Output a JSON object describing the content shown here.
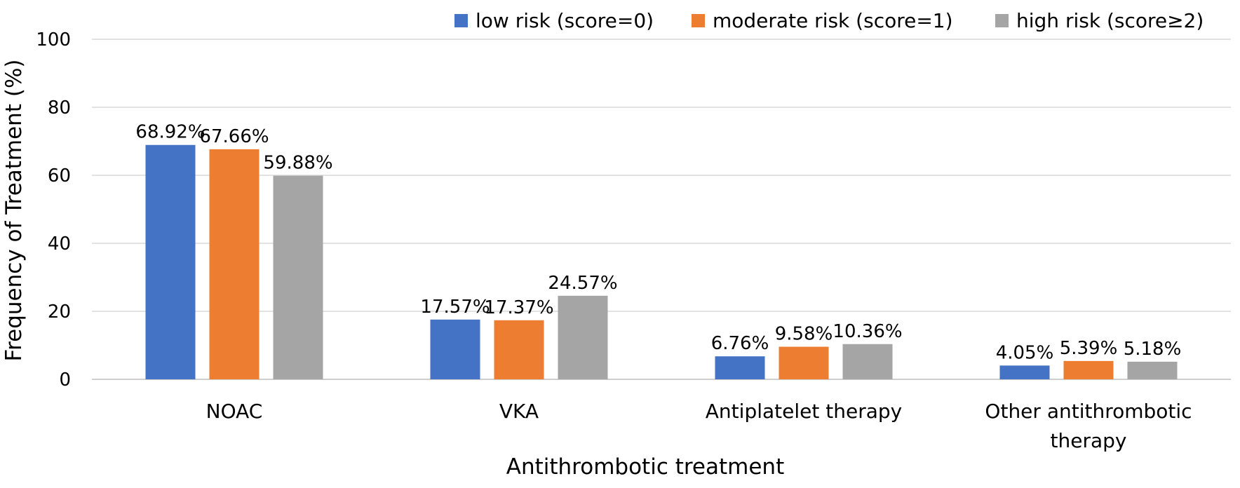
{
  "chart_data": {
    "type": "bar",
    "title": "",
    "xlabel": "Antithrombotic treatment",
    "ylabel": "Frequency of Treatment (%)",
    "ylim": [
      0,
      100
    ],
    "yticks": [
      0,
      20,
      40,
      60,
      80,
      100
    ],
    "grid": true,
    "legend_position": "top-right",
    "categories": [
      [
        "NOAC"
      ],
      [
        "VKA"
      ],
      [
        "Antiplatelet therapy"
      ],
      [
        "Other antithrombotic",
        "therapy"
      ]
    ],
    "series": [
      {
        "name": "low risk (score=0)",
        "color": "#4472C4",
        "values": [
          68.92,
          17.57,
          6.76,
          4.05
        ],
        "labels": [
          "68.92%",
          "17.57%",
          "6.76%",
          "4.05%"
        ]
      },
      {
        "name": "moderate risk (score=1)",
        "color": "#ED7D31",
        "values": [
          67.66,
          17.37,
          9.58,
          5.39
        ],
        "labels": [
          "67.66%",
          "17.37%",
          "9.58%",
          "5.39%"
        ]
      },
      {
        "name": "high risk (score≥2)",
        "color": "#A5A5A5",
        "values": [
          59.88,
          24.57,
          10.36,
          5.18
        ],
        "labels": [
          "59.88%",
          "24.57%",
          "10.36%",
          "5.18%"
        ]
      }
    ]
  }
}
